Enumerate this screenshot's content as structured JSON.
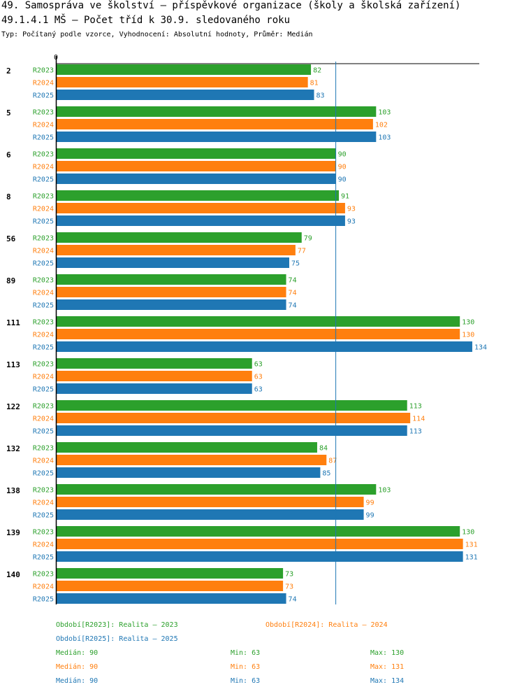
{
  "title_line1": "49. Samospráva ve školství – příspěvkové organizace (školy a školská zařízení)",
  "title_line2": "49.1.4.1 MŠ – Počet tříd k 30.9. sledovaného roku",
  "subtitle": "Typ: Počítaný podle vzorce, Vyhodnocení: Absolutní hodnoty, Průměr: Medián",
  "colors": {
    "R2023": "#2ca02c",
    "R2024": "#ff7f0e",
    "R2025": "#1f77b4"
  },
  "chart_data": {
    "type": "bar",
    "orientation": "horizontal",
    "axis_zero_label": "0",
    "categories": [
      "2",
      "5",
      "6",
      "8",
      "56",
      "89",
      "111",
      "113",
      "122",
      "132",
      "138",
      "139",
      "140"
    ],
    "series": [
      {
        "name": "R2023",
        "values": [
          82,
          103,
          90,
          91,
          79,
          74,
          130,
          63,
          113,
          84,
          103,
          130,
          73
        ]
      },
      {
        "name": "R2024",
        "values": [
          81,
          102,
          90,
          93,
          77,
          74,
          130,
          63,
          114,
          87,
          99,
          131,
          73
        ]
      },
      {
        "name": "R2025",
        "values": [
          83,
          103,
          90,
          93,
          75,
          74,
          134,
          63,
          113,
          85,
          99,
          131,
          74
        ]
      }
    ],
    "reference_line": {
      "label": "Medián",
      "value": 90
    }
  },
  "legend": {
    "R2023": "Období[R2023]: Realita – 2023",
    "R2024": "Období[R2024]: Realita – 2024",
    "R2025": "Období[R2025]: Realita – 2025"
  },
  "stats": [
    {
      "series": "R2023",
      "median": "Medián: 90",
      "min": "Min: 63",
      "max": "Max: 130"
    },
    {
      "series": "R2024",
      "median": "Medián: 90",
      "min": "Min: 63",
      "max": "Max: 131"
    },
    {
      "series": "R2025",
      "median": "Medián: 90",
      "min": "Min: 63",
      "max": "Max: 134"
    }
  ]
}
